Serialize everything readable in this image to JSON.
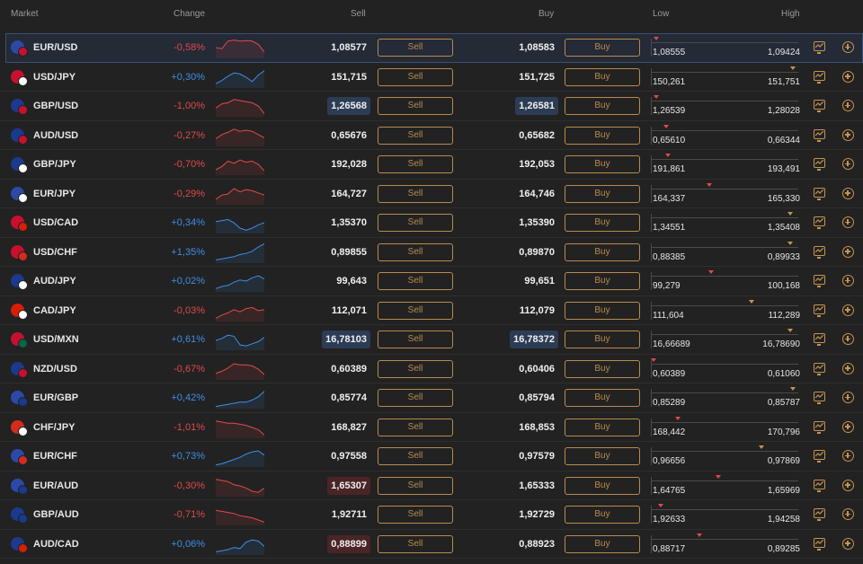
{
  "header": {
    "market": "Market",
    "change": "Change",
    "sell": "Sell",
    "buy": "Buy",
    "low": "Low",
    "high": "High"
  },
  "buttons": {
    "sell_label": "Sell",
    "buy_label": "Buy"
  },
  "colors": {
    "negative": "#e0494a",
    "positive": "#3d8ee8",
    "accent": "#b98a4e"
  },
  "rows": [
    {
      "pair": "EUR/USD",
      "change": "-0,58%",
      "dir": "neg",
      "sell": "1,08577",
      "buy": "1,08583",
      "low": "1,08555",
      "high": "1,09424",
      "pos": 0.02,
      "marker": "red",
      "sellHl": "",
      "buyHl": "",
      "flags": [
        "#2b4aa8",
        "#c8102e"
      ],
      "spark": [
        0.5,
        0.55,
        0.2,
        0.15,
        0.2,
        0.18,
        0.2,
        0.35,
        0.7
      ]
    },
    {
      "pair": "USD/JPY",
      "change": "+0,30%",
      "dir": "pos",
      "sell": "151,715",
      "buy": "151,725",
      "low": "150,261",
      "high": "151,751",
      "pos": 0.97,
      "marker": "orange",
      "sellHl": "",
      "buyHl": "",
      "flags": [
        "#c8102e",
        "#ffffff"
      ],
      "spark": [
        0.8,
        0.65,
        0.45,
        0.3,
        0.35,
        0.5,
        0.7,
        0.4,
        0.2
      ]
    },
    {
      "pair": "GBP/USD",
      "change": "-1,00%",
      "dir": "neg",
      "sell": "1,26568",
      "buy": "1,26581",
      "low": "1,26539",
      "high": "1,28028",
      "pos": 0.02,
      "marker": "red",
      "sellHl": "blue",
      "buyHl": "blue",
      "flags": [
        "#1a3a8f",
        "#c8102e"
      ],
      "spark": [
        0.6,
        0.4,
        0.35,
        0.2,
        0.25,
        0.3,
        0.35,
        0.5,
        0.85
      ]
    },
    {
      "pair": "AUD/USD",
      "change": "-0,27%",
      "dir": "neg",
      "sell": "0,65676",
      "buy": "0,65682",
      "low": "0,65610",
      "high": "0,66344",
      "pos": 0.09,
      "marker": "red",
      "sellHl": "",
      "buyHl": "",
      "flags": [
        "#1a3a8f",
        "#c8102e"
      ],
      "spark": [
        0.65,
        0.45,
        0.35,
        0.2,
        0.3,
        0.25,
        0.3,
        0.45,
        0.6
      ]
    },
    {
      "pair": "GBP/JPY",
      "change": "-0,70%",
      "dir": "neg",
      "sell": "192,028",
      "buy": "192,053",
      "low": "191,861",
      "high": "193,491",
      "pos": 0.1,
      "marker": "red",
      "sellHl": "",
      "buyHl": "",
      "flags": [
        "#1a3a8f",
        "#ffffff"
      ],
      "spark": [
        0.75,
        0.6,
        0.35,
        0.45,
        0.3,
        0.4,
        0.35,
        0.5,
        0.8
      ]
    },
    {
      "pair": "EUR/JPY",
      "change": "-0,29%",
      "dir": "neg",
      "sell": "164,727",
      "buy": "164,746",
      "low": "164,337",
      "high": "165,330",
      "pos": 0.39,
      "marker": "red",
      "sellHl": "",
      "buyHl": "",
      "flags": [
        "#2b4aa8",
        "#ffffff"
      ],
      "spark": [
        0.75,
        0.55,
        0.5,
        0.25,
        0.4,
        0.3,
        0.35,
        0.45,
        0.55
      ]
    },
    {
      "pair": "USD/CAD",
      "change": "+0,34%",
      "dir": "pos",
      "sell": "1,35370",
      "buy": "1,35390",
      "low": "1,34551",
      "high": "1,35408",
      "pos": 0.95,
      "marker": "orange",
      "sellHl": "",
      "buyHl": "",
      "flags": [
        "#c8102e",
        "#d81e05"
      ],
      "spark": [
        0.45,
        0.4,
        0.35,
        0.5,
        0.75,
        0.85,
        0.75,
        0.6,
        0.5
      ]
    },
    {
      "pair": "USD/CHF",
      "change": "+1,35%",
      "dir": "pos",
      "sell": "0,89855",
      "buy": "0,89870",
      "low": "0,88385",
      "high": "0,89933",
      "pos": 0.95,
      "marker": "orange",
      "sellHl": "",
      "buyHl": "",
      "flags": [
        "#c8102e",
        "#d52b1e"
      ],
      "spark": [
        0.85,
        0.8,
        0.75,
        0.7,
        0.6,
        0.55,
        0.45,
        0.25,
        0.1
      ]
    },
    {
      "pair": "AUD/JPY",
      "change": "+0,02%",
      "dir": "pos",
      "sell": "99,643",
      "buy": "99,651",
      "low": "99,279",
      "high": "100,168",
      "pos": 0.4,
      "marker": "red",
      "sellHl": "",
      "buyHl": "",
      "flags": [
        "#1a3a8f",
        "#ffffff"
      ],
      "spark": [
        0.85,
        0.75,
        0.7,
        0.55,
        0.45,
        0.5,
        0.35,
        0.25,
        0.4
      ]
    },
    {
      "pair": "CAD/JPY",
      "change": "-0,03%",
      "dir": "neg",
      "sell": "112,071",
      "buy": "112,079",
      "low": "111,604",
      "high": "112,289",
      "pos": 0.68,
      "marker": "orange",
      "sellHl": "",
      "buyHl": "",
      "flags": [
        "#d81e05",
        "#ffffff"
      ],
      "spark": [
        0.85,
        0.7,
        0.6,
        0.45,
        0.55,
        0.4,
        0.35,
        0.5,
        0.45
      ]
    },
    {
      "pair": "USD/MXN",
      "change": "+0,61%",
      "dir": "pos",
      "sell": "16,78103",
      "buy": "16,78372",
      "low": "16,66689",
      "high": "16,78690",
      "pos": 0.95,
      "marker": "orange",
      "sellHl": "blue",
      "buyHl": "blue",
      "flags": [
        "#c8102e",
        "#006847"
      ],
      "spark": [
        0.55,
        0.45,
        0.3,
        0.35,
        0.75,
        0.8,
        0.7,
        0.6,
        0.4
      ]
    },
    {
      "pair": "NZD/USD",
      "change": "-0,67%",
      "dir": "neg",
      "sell": "0,60389",
      "buy": "0,60406",
      "low": "0,60389",
      "high": "0,61060",
      "pos": 0.0,
      "marker": "red",
      "sellHl": "",
      "buyHl": "",
      "flags": [
        "#1a3a8f",
        "#c8102e"
      ],
      "spark": [
        0.7,
        0.6,
        0.45,
        0.25,
        0.3,
        0.3,
        0.35,
        0.5,
        0.75
      ]
    },
    {
      "pair": "EUR/GBP",
      "change": "+0,42%",
      "dir": "pos",
      "sell": "0,85774",
      "buy": "0,85794",
      "low": "0,85289",
      "high": "0,85787",
      "pos": 0.97,
      "marker": "orange",
      "sellHl": "",
      "buyHl": "",
      "flags": [
        "#2b4aa8",
        "#1a3a8f"
      ],
      "spark": [
        0.9,
        0.85,
        0.8,
        0.75,
        0.7,
        0.7,
        0.6,
        0.45,
        0.2
      ]
    },
    {
      "pair": "CHF/JPY",
      "change": "-1,01%",
      "dir": "neg",
      "sell": "168,827",
      "buy": "168,853",
      "low": "168,442",
      "high": "170,796",
      "pos": 0.17,
      "marker": "red",
      "sellHl": "",
      "buyHl": "",
      "flags": [
        "#d52b1e",
        "#ffffff"
      ],
      "spark": [
        0.2,
        0.25,
        0.3,
        0.3,
        0.35,
        0.4,
        0.5,
        0.6,
        0.85
      ]
    },
    {
      "pair": "EUR/CHF",
      "change": "+0,73%",
      "dir": "pos",
      "sell": "0,97558",
      "buy": "0,97579",
      "low": "0,96656",
      "high": "0,97869",
      "pos": 0.75,
      "marker": "orange",
      "sellHl": "",
      "buyHl": "",
      "flags": [
        "#2b4aa8",
        "#d52b1e"
      ],
      "spark": [
        0.9,
        0.85,
        0.75,
        0.65,
        0.55,
        0.4,
        0.3,
        0.25,
        0.45
      ]
    },
    {
      "pair": "EUR/AUD",
      "change": "-0,30%",
      "dir": "neg",
      "sell": "1,65307",
      "buy": "1,65333",
      "low": "1,64765",
      "high": "1,65969",
      "pos": 0.45,
      "marker": "red",
      "sellHl": "red",
      "buyHl": "",
      "flags": [
        "#2b4aa8",
        "#1a3a8f"
      ],
      "spark": [
        0.2,
        0.25,
        0.3,
        0.45,
        0.5,
        0.6,
        0.75,
        0.8,
        0.6
      ]
    },
    {
      "pair": "GBP/AUD",
      "change": "-0,71%",
      "dir": "neg",
      "sell": "1,92711",
      "buy": "1,92729",
      "low": "1,92633",
      "high": "1,94258",
      "pos": 0.05,
      "marker": "red",
      "sellHl": "",
      "buyHl": "",
      "flags": [
        "#1a3a8f",
        "#1a3a8f"
      ],
      "spark": [
        0.3,
        0.35,
        0.4,
        0.45,
        0.55,
        0.6,
        0.65,
        0.75,
        0.85
      ]
    },
    {
      "pair": "AUD/CAD",
      "change": "+0,06%",
      "dir": "pos",
      "sell": "0,88899",
      "buy": "0,88923",
      "low": "0,88717",
      "high": "0,89285",
      "pos": 0.32,
      "marker": "red",
      "sellHl": "red",
      "buyHl": "",
      "flags": [
        "#1a3a8f",
        "#d81e05"
      ],
      "spark": [
        0.85,
        0.8,
        0.75,
        0.65,
        0.7,
        0.4,
        0.3,
        0.35,
        0.6
      ]
    }
  ]
}
